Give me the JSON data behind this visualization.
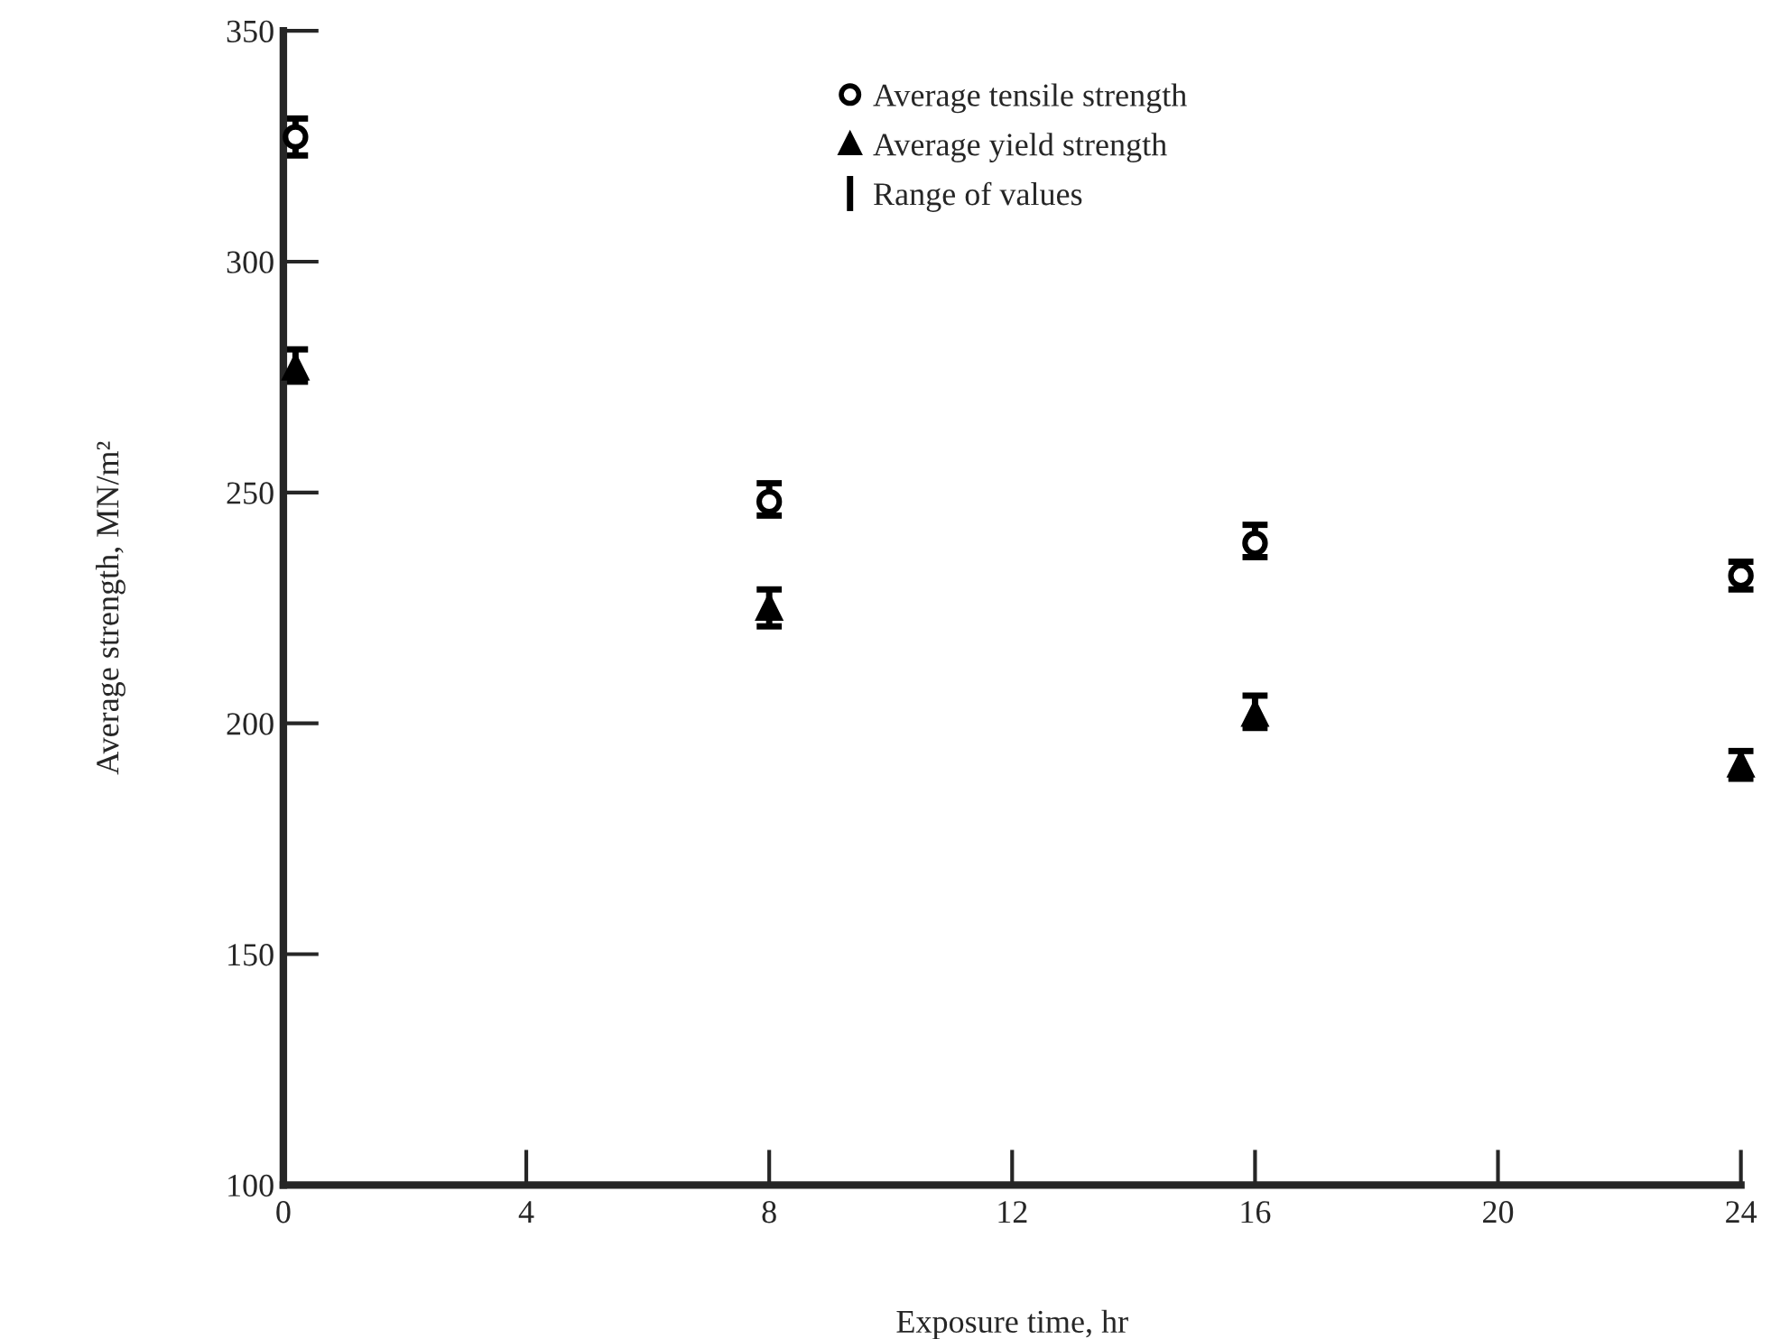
{
  "chart_data": {
    "type": "scatter",
    "xlabel": "Exposure time, hr",
    "ylabel": "Average strength, MN/m²",
    "x": [
      0.2,
      8,
      16,
      24
    ],
    "series": [
      {
        "name": "Average tensile strength",
        "color": "#000000",
        "marker": "circle",
        "values": [
          327,
          248,
          239,
          232
        ],
        "errors": [
          [
            323,
            331
          ],
          [
            245,
            252
          ],
          [
            236,
            243
          ],
          [
            229,
            235
          ]
        ]
      },
      {
        "name": "Average yield strength",
        "color": "#000000",
        "marker": "triangle",
        "values": [
          277,
          225,
          202,
          191
        ],
        "errors": [
          [
            274,
            281
          ],
          [
            221,
            229
          ],
          [
            199,
            206
          ],
          [
            188,
            194
          ]
        ]
      }
    ],
    "annotations": [
      "Range of values"
    ],
    "xlim": [
      0,
      24
    ],
    "xticks": [
      0,
      4,
      8,
      12,
      16,
      20,
      24
    ],
    "ylim": [
      100,
      350
    ],
    "yticks": [
      100,
      150,
      200,
      250,
      300,
      350
    ],
    "grid": false,
    "legend": "top"
  }
}
